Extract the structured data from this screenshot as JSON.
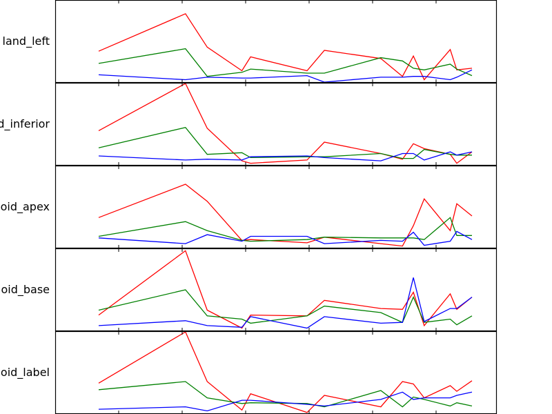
{
  "chart_data": [
    {
      "type": "line",
      "ylabel": "land_left",
      "xlim": [
        0,
        17.4
      ],
      "ylim": [
        0,
        1
      ],
      "grid": false,
      "x": [
        0,
        4,
        5,
        6.6,
        7,
        9.6,
        10.4,
        13,
        14,
        14.5,
        15,
        16.2,
        16.5,
        17.2
      ],
      "series": [
        {
          "color": "#ff0000",
          "values": [
            0.38,
            0.84,
            0.43,
            0.14,
            0.31,
            0.14,
            0.39,
            0.29,
            0.07,
            0.32,
            0.03,
            0.4,
            0.15,
            0.17
          ]
        },
        {
          "color": "#008000",
          "values": [
            0.23,
            0.41,
            0.07,
            0.12,
            0.16,
            0.11,
            0.11,
            0.3,
            0.26,
            0.17,
            0.15,
            0.22,
            0.16,
            0.08
          ]
        },
        {
          "color": "#0000ff",
          "values": [
            0.09,
            0.03,
            0.06,
            0.05,
            0.05,
            0.08,
            0.0,
            0.06,
            0.06,
            0.07,
            0.07,
            0.03,
            0.06,
            0.15
          ]
        }
      ]
    },
    {
      "type": "line",
      "ylabel": "d_inferior",
      "xlim": [
        0,
        17.4
      ],
      "ylim": [
        0,
        1
      ],
      "grid": false,
      "x": [
        0,
        4,
        5,
        6.6,
        7,
        9.6,
        10.4,
        13,
        14,
        14.5,
        15,
        16.2,
        16.5,
        17.2
      ],
      "series": [
        {
          "color": "#ff0000",
          "values": [
            0.42,
            1.0,
            0.45,
            0.05,
            0.02,
            0.06,
            0.28,
            0.14,
            0.07,
            0.26,
            0.2,
            0.13,
            0.02,
            0.16
          ]
        },
        {
          "color": "#008000",
          "values": [
            0.21,
            0.46,
            0.13,
            0.15,
            0.09,
            0.1,
            0.1,
            0.14,
            0.08,
            0.08,
            0.19,
            0.13,
            0.12,
            0.12
          ]
        },
        {
          "color": "#0000ff",
          "values": [
            0.11,
            0.06,
            0.07,
            0.06,
            0.1,
            0.11,
            0.09,
            0.05,
            0.14,
            0.14,
            0.06,
            0.16,
            0.12,
            0.16
          ]
        }
      ]
    },
    {
      "type": "line",
      "ylabel": "oid_apex",
      "xlim": [
        0,
        17.4
      ],
      "ylim": [
        0,
        1
      ],
      "grid": false,
      "x": [
        0,
        4,
        5,
        6.6,
        7,
        9.6,
        10.4,
        13,
        14,
        14.5,
        15,
        16.2,
        16.5,
        17.2
      ],
      "series": [
        {
          "color": "#ff0000",
          "values": [
            0.37,
            0.78,
            0.57,
            0.09,
            0.1,
            0.06,
            0.13,
            0.05,
            0.02,
            0.27,
            0.6,
            0.21,
            0.54,
            0.39
          ]
        },
        {
          "color": "#008000",
          "values": [
            0.14,
            0.32,
            0.21,
            0.09,
            0.08,
            0.1,
            0.13,
            0.12,
            0.12,
            0.12,
            0.1,
            0.37,
            0.15,
            0.15
          ]
        },
        {
          "color": "#0000ff",
          "values": [
            0.12,
            0.05,
            0.16,
            0.08,
            0.14,
            0.14,
            0.05,
            0.09,
            0.08,
            0.19,
            0.03,
            0.08,
            0.2,
            0.1
          ]
        }
      ]
    },
    {
      "type": "line",
      "ylabel": "oid_base",
      "xlim": [
        0,
        17.4
      ],
      "ylim": [
        0,
        1
      ],
      "grid": false,
      "x": [
        0,
        4,
        5,
        6.6,
        7,
        9.6,
        10.4,
        13,
        14,
        14.5,
        15,
        16.2,
        16.5,
        17.2
      ],
      "series": [
        {
          "color": "#ff0000",
          "values": [
            0.19,
            0.98,
            0.25,
            0.03,
            0.19,
            0.18,
            0.37,
            0.27,
            0.26,
            0.47,
            0.06,
            0.45,
            0.26,
            0.41
          ]
        },
        {
          "color": "#008000",
          "values": [
            0.25,
            0.5,
            0.18,
            0.14,
            0.09,
            0.18,
            0.3,
            0.22,
            0.1,
            0.41,
            0.1,
            0.14,
            0.07,
            0.18
          ]
        },
        {
          "color": "#0000ff",
          "values": [
            0.06,
            0.12,
            0.06,
            0.04,
            0.17,
            0.03,
            0.17,
            0.09,
            0.1,
            0.65,
            0.11,
            0.27,
            0.27,
            0.41
          ]
        }
      ]
    },
    {
      "type": "line",
      "ylabel": "oid_label",
      "xlim": [
        0,
        17.4
      ],
      "ylim": [
        0,
        1
      ],
      "grid": false,
      "x": [
        0,
        4,
        5,
        6.6,
        7,
        9.6,
        10.4,
        13,
        14,
        14.5,
        15,
        16.2,
        16.5,
        17.2
      ],
      "series": [
        {
          "color": "#ff0000",
          "values": [
            0.37,
            1.0,
            0.39,
            0.04,
            0.24,
            0.01,
            0.22,
            0.08,
            0.39,
            0.36,
            0.19,
            0.34,
            0.27,
            0.4
          ]
        },
        {
          "color": "#008000",
          "values": [
            0.29,
            0.39,
            0.19,
            0.12,
            0.13,
            0.12,
            0.08,
            0.28,
            0.08,
            0.2,
            0.17,
            0.09,
            0.13,
            0.09
          ]
        },
        {
          "color": "#0000ff",
          "values": [
            0.05,
            0.08,
            0.03,
            0.16,
            0.16,
            0.11,
            0.09,
            0.17,
            0.26,
            0.17,
            0.19,
            0.19,
            0.22,
            0.26
          ]
        }
      ]
    }
  ]
}
